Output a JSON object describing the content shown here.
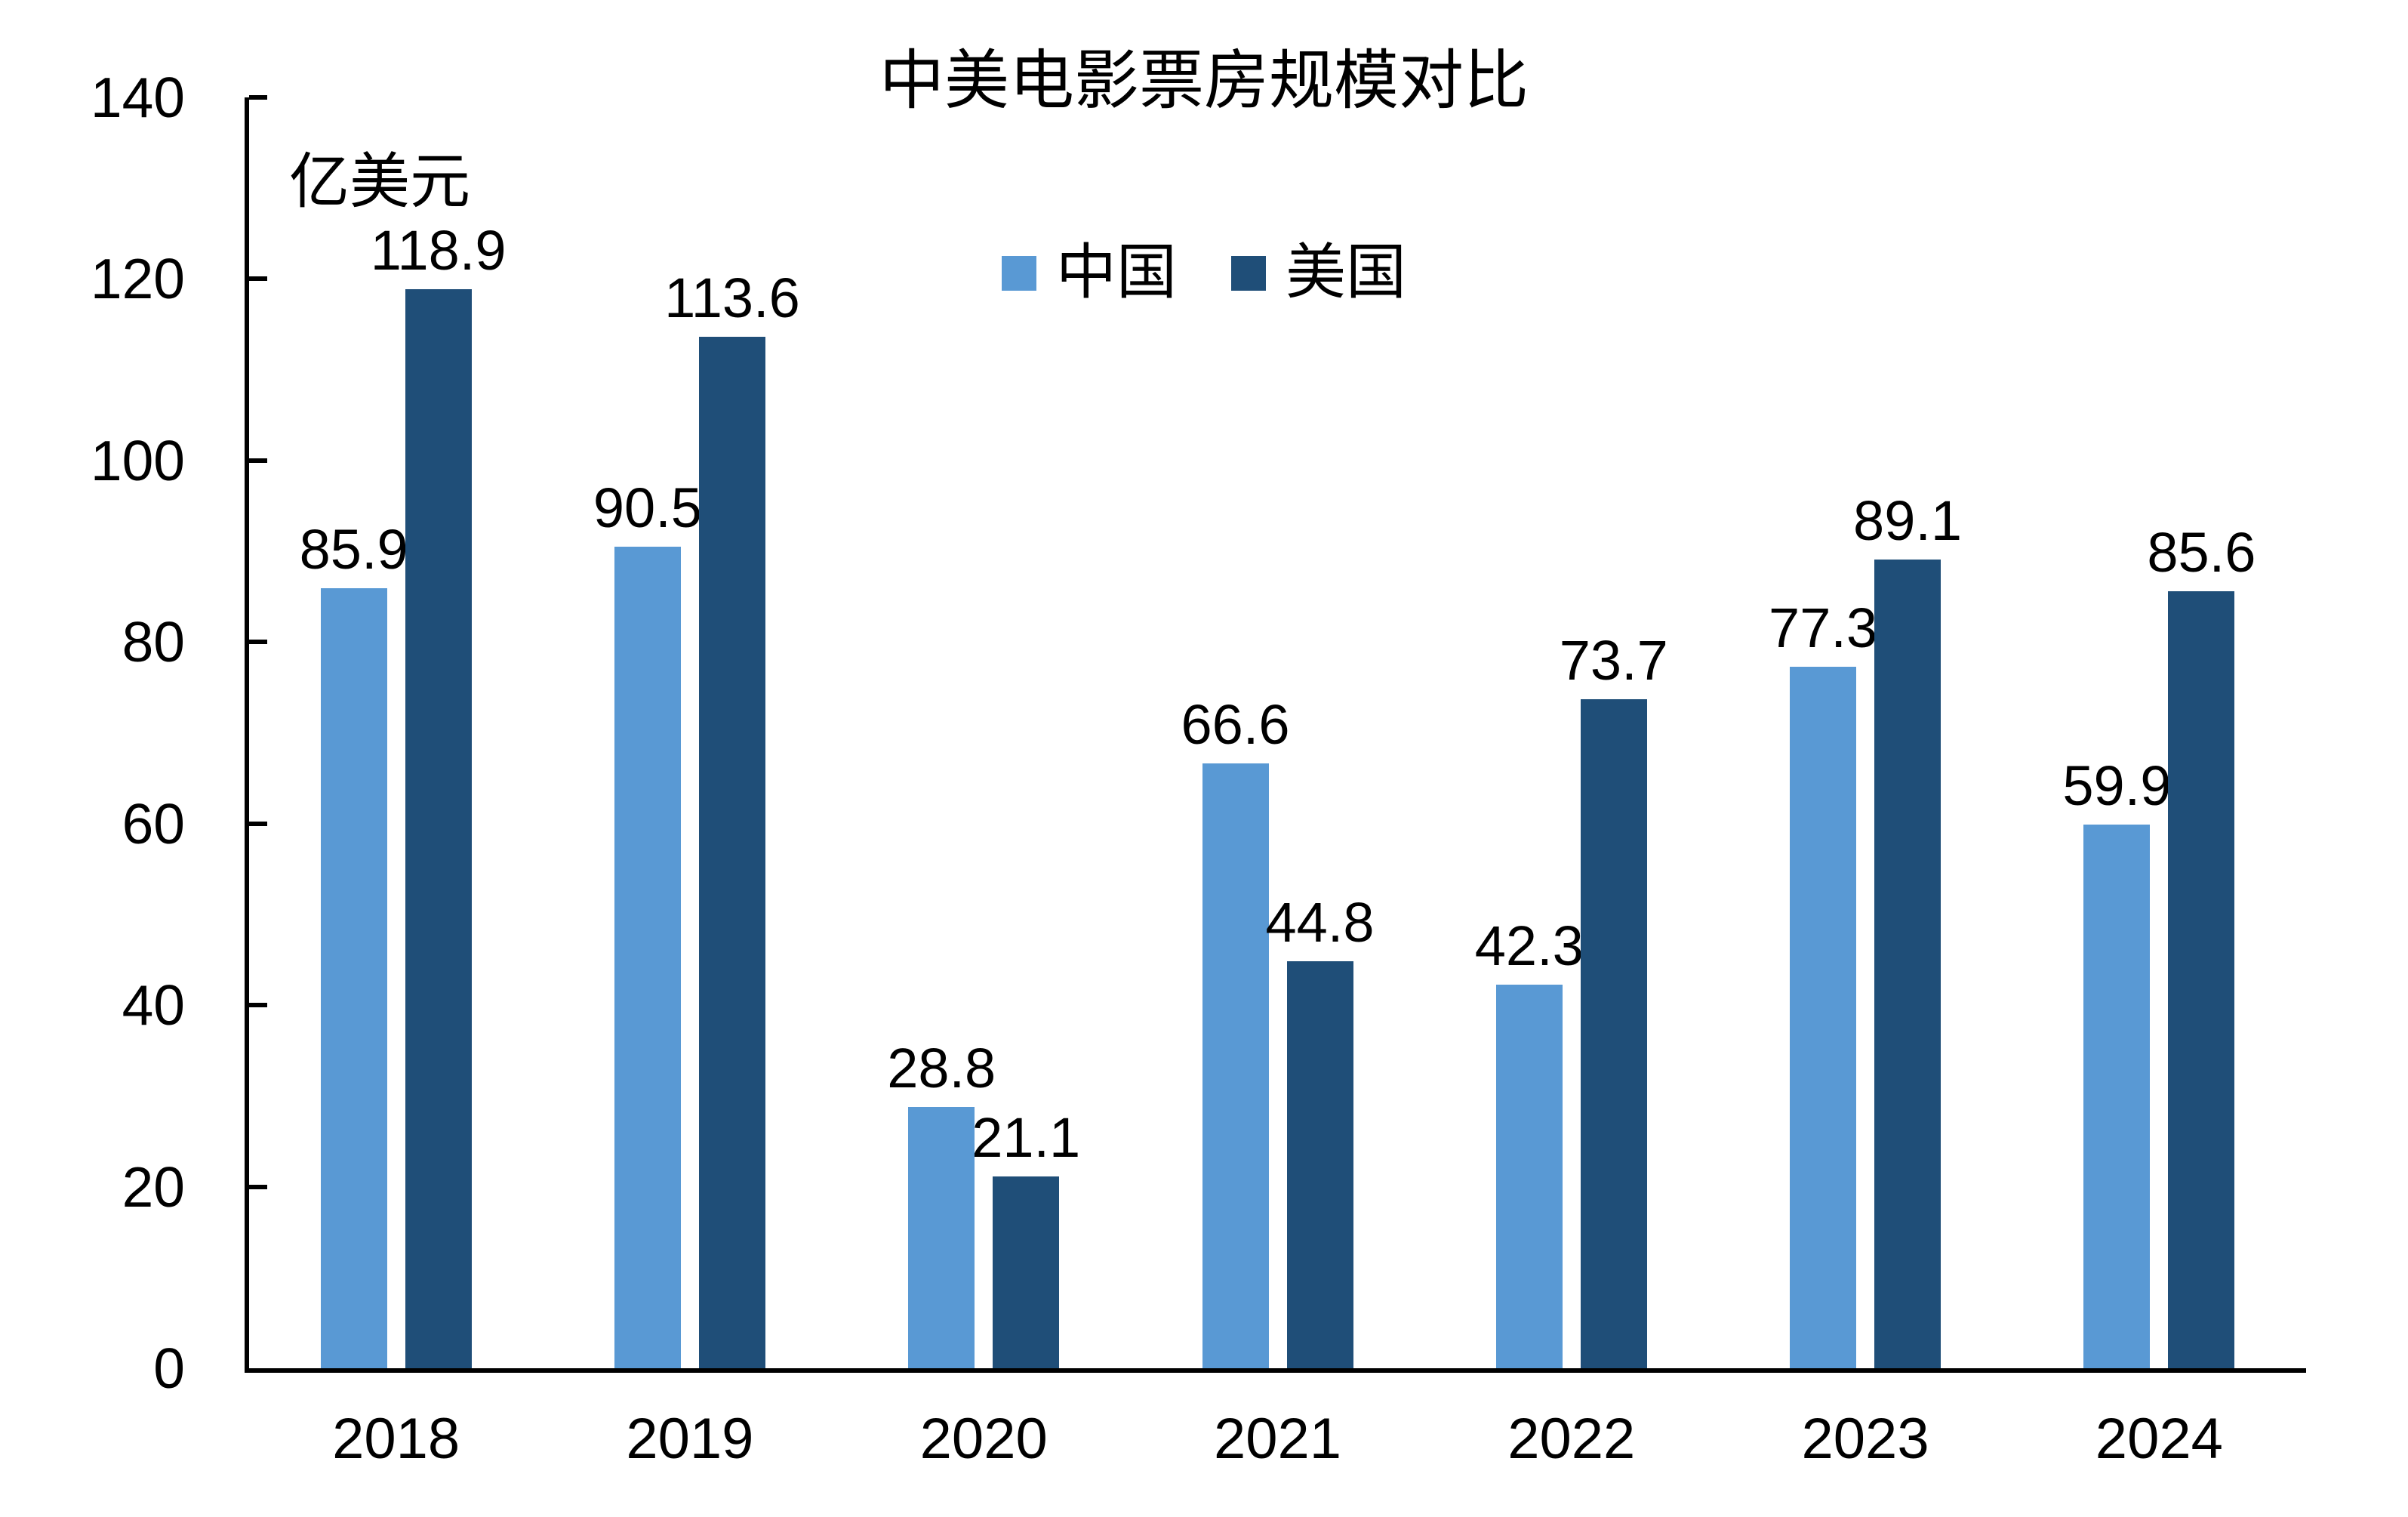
{
  "chart_data": {
    "type": "bar",
    "title": "中美电影票房规模对比",
    "unit_label": "亿美元",
    "categories": [
      "2018",
      "2019",
      "2020",
      "2021",
      "2022",
      "2023",
      "2024"
    ],
    "series": [
      {
        "name": "中国",
        "color": "#5999D4",
        "values": [
          85.9,
          90.5,
          28.8,
          66.6,
          42.3,
          77.3,
          59.9
        ]
      },
      {
        "name": "美国",
        "color": "#1F4E78",
        "values": [
          118.9,
          113.6,
          21.1,
          44.8,
          73.7,
          89.1,
          85.6
        ]
      }
    ],
    "ylim": [
      0,
      140
    ],
    "yticks": [
      0,
      20,
      40,
      60,
      80,
      100,
      120,
      140
    ],
    "grid": false,
    "legend_position": "top-center",
    "data_labels": true,
    "axis_color": "#000000",
    "background_color": "#FFFFFF"
  }
}
